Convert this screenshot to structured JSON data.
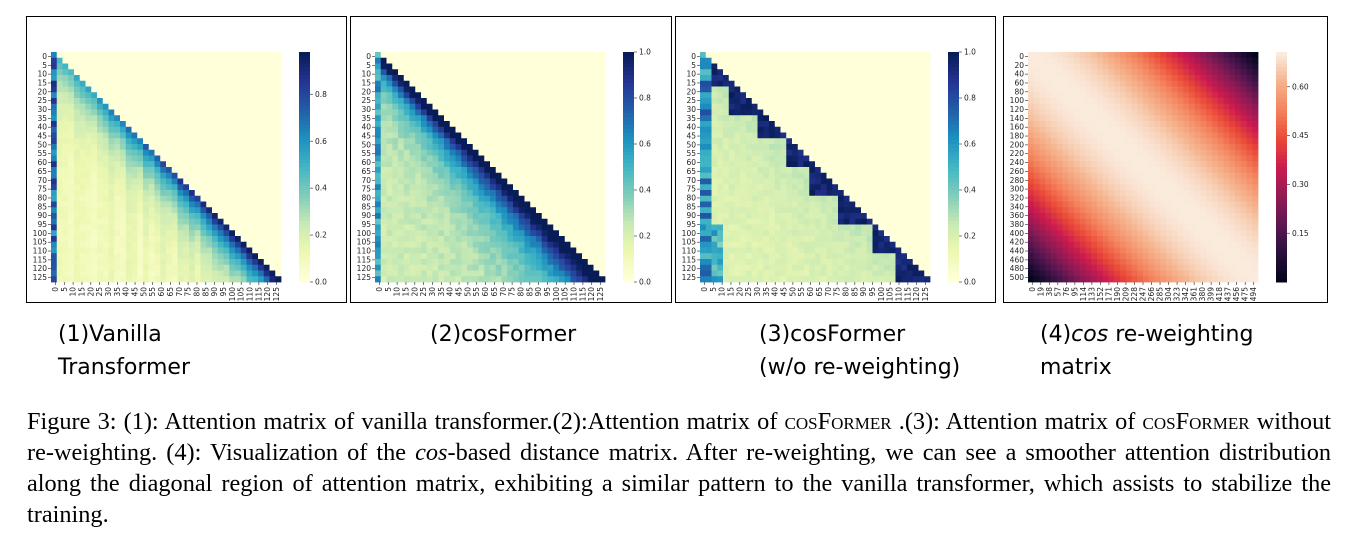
{
  "panels": [
    {
      "kind": "vanilla",
      "subtitle_line1": "(1)Vanilla",
      "subtitle_line2": "Transformer",
      "axis_ticks": [
        "0",
        "5",
        "10",
        "15",
        "20",
        "25",
        "30",
        "35",
        "40",
        "45",
        "50",
        "55",
        "60",
        "65",
        "70",
        "75",
        "80",
        "85",
        "90",
        "95",
        "100",
        "105",
        "110",
        "115",
        "120",
        "125"
      ],
      "colorbar": {
        "colormap": "YlGnBu",
        "ticks": [
          "0.8",
          "0.6",
          "0.4",
          "0.2",
          "0.0"
        ],
        "tick_values": [
          0.8,
          0.6,
          0.4,
          0.2,
          0.0
        ],
        "range": [
          0,
          0.98
        ]
      }
    },
    {
      "kind": "cosformer",
      "subtitle_line1": "(2)cosFormer",
      "subtitle_line2": "",
      "axis_ticks": [
        "0",
        "5",
        "10",
        "15",
        "20",
        "25",
        "30",
        "35",
        "40",
        "45",
        "50",
        "55",
        "60",
        "65",
        "70",
        "75",
        "80",
        "85",
        "90",
        "95",
        "100",
        "105",
        "110",
        "115",
        "120",
        "125"
      ],
      "colorbar": {
        "colormap": "YlGnBu",
        "ticks": [
          "1.0",
          "0.8",
          "0.6",
          "0.4",
          "0.2",
          "0.0"
        ],
        "tick_values": [
          1.0,
          0.8,
          0.6,
          0.4,
          0.2,
          0.0
        ],
        "range": [
          0,
          1.0
        ]
      }
    },
    {
      "kind": "noreweight",
      "subtitle_line1": "(3)cosFormer",
      "subtitle_line2": "(w/o re-weighting)",
      "axis_ticks": [
        "0",
        "5",
        "10",
        "15",
        "20",
        "25",
        "30",
        "35",
        "40",
        "45",
        "50",
        "55",
        "60",
        "65",
        "70",
        "75",
        "80",
        "85",
        "90",
        "95",
        "100",
        "105",
        "110",
        "115",
        "120",
        "125"
      ],
      "colorbar": {
        "colormap": "YlGnBu",
        "ticks": [
          "1.0",
          "0.8",
          "0.6",
          "0.4",
          "0.2",
          "0.0"
        ],
        "tick_values": [
          1.0,
          0.8,
          0.6,
          0.4,
          0.2,
          0.0
        ],
        "range": [
          0,
          1.0
        ]
      }
    },
    {
      "kind": "cosmatrix",
      "subtitle_prefix": "(4)",
      "subtitle_italic": "cos",
      "subtitle_rest": " re-weighting",
      "subtitle_line2": "matrix",
      "y_ticks": [
        "0",
        "20",
        "40",
        "60",
        "80",
        "100",
        "120",
        "140",
        "160",
        "180",
        "200",
        "220",
        "240",
        "260",
        "280",
        "300",
        "320",
        "340",
        "360",
        "380",
        "400",
        "420",
        "440",
        "460",
        "480",
        "500"
      ],
      "x_ticks": [
        "0",
        "19",
        "38",
        "57",
        "76",
        "95",
        "114",
        "133",
        "152",
        "171",
        "190",
        "209",
        "228",
        "247",
        "266",
        "285",
        "304",
        "323",
        "342",
        "361",
        "380",
        "399",
        "418",
        "437",
        "456",
        "475",
        "494"
      ],
      "colorbar": {
        "colormap": "rocket",
        "ticks": [
          "0.60",
          "0.45",
          "0.30",
          "0.15"
        ],
        "tick_values": [
          0.6,
          0.45,
          0.3,
          0.15
        ],
        "range": [
          0.0,
          0.707
        ]
      }
    }
  ],
  "caption": {
    "label": "Figure 3:",
    "t1": " (1): Attention matrix of vanilla transformer.(2):Attention matrix of ",
    "sc1": "cosFormer",
    "t2": " .(3): Attention matrix of ",
    "sc2": "cosFormer",
    "t3": " without re-weighting. (4): Visualization of the ",
    "it1": "cos",
    "t4": "-based distance matrix. After re-weighting, we can see a smoother attention distribution along the diagonal region of attention matrix, exhibiting a similar pattern to the vanilla transformer, which assists to stabilize the training."
  }
}
